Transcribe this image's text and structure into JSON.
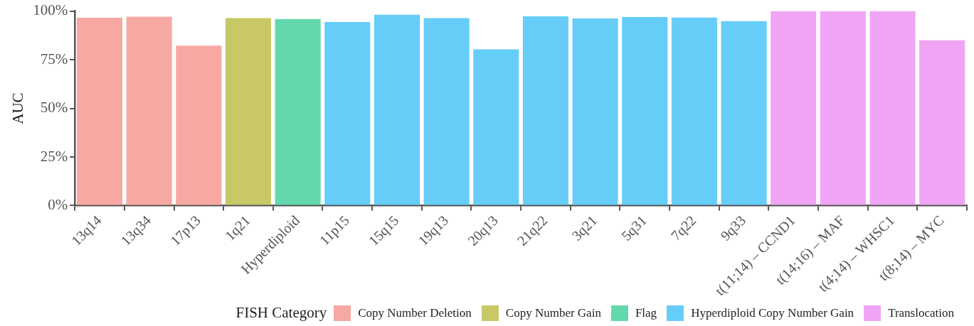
{
  "chart_data": {
    "type": "bar",
    "ylabel": "AUC",
    "legend_title": "FISH Category",
    "legend": "bottom",
    "grid": false,
    "categories": [
      "13q14",
      "13q34",
      "17p13",
      "1q21",
      "Hyperdiploid",
      "11p15",
      "15q15",
      "19q13",
      "20q13",
      "21q22",
      "3q21",
      "5q31",
      "7q22",
      "9q33",
      "t(11;14) – CCND1",
      "t(14;16) – MAF",
      "t(4;14) – WHSC1",
      "t(8;14) – MYC"
    ],
    "series": [
      {
        "name": "Copy Number Deletion",
        "color": "#f8a8a3",
        "values": [
          96.6,
          97.1,
          82.2,
          null,
          null,
          null,
          null,
          null,
          null,
          null,
          null,
          null,
          null,
          null,
          null,
          null,
          null,
          null
        ]
      },
      {
        "name": "Copy Number Gain",
        "color": "#c8c866",
        "values": [
          null,
          null,
          null,
          96.4,
          null,
          null,
          null,
          null,
          null,
          null,
          null,
          null,
          null,
          null,
          null,
          null,
          null,
          null
        ]
      },
      {
        "name": "Flag",
        "color": "#63d8ad",
        "values": [
          null,
          null,
          null,
          null,
          95.9,
          null,
          null,
          null,
          null,
          null,
          null,
          null,
          null,
          null,
          null,
          null,
          null,
          null
        ]
      },
      {
        "name": "Hyperdiploid Copy Number Gain",
        "color": "#66cdf9",
        "values": [
          null,
          null,
          null,
          null,
          null,
          94.4,
          98.1,
          96.4,
          80.3,
          97.3,
          96.2,
          96.9,
          96.7,
          94.8,
          null,
          null,
          null,
          null
        ]
      },
      {
        "name": "Translocation",
        "color": "#f0a5f4",
        "values": [
          null,
          null,
          null,
          null,
          null,
          null,
          null,
          null,
          null,
          null,
          null,
          null,
          null,
          null,
          100,
          99.9,
          100,
          85.0
        ]
      }
    ],
    "ylim": [
      0,
      100
    ],
    "yticks": [
      {
        "value": 0,
        "label": "0%"
      },
      {
        "value": 25,
        "label": "25%"
      },
      {
        "value": 50,
        "label": "50%"
      },
      {
        "value": 75,
        "label": "75%"
      },
      {
        "value": 100,
        "label": "100%"
      }
    ]
  }
}
